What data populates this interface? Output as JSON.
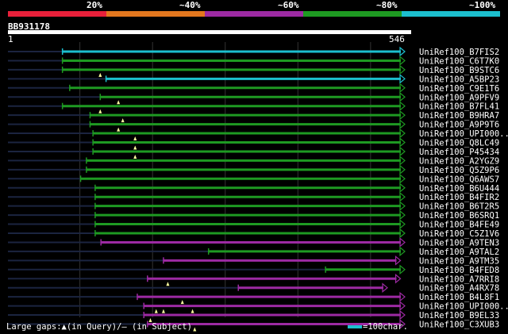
{
  "identity_legend": [
    {
      "label": "20%",
      "color": "#e8203a"
    },
    {
      "label": "~40%",
      "color": "#e3771e"
    },
    {
      "label": "~60%",
      "color": "#9d2aa3"
    },
    {
      "label": "~80%",
      "color": "#1e9a22"
    },
    {
      "label": "~100%",
      "color": "#1cbfce"
    }
  ],
  "query": {
    "id": "BB931178",
    "start_label": "1",
    "end_label": "546",
    "length": 546
  },
  "hits": [
    {
      "name": "UniRef100_B7FIS2",
      "color": "#1cbfce",
      "start": 76,
      "end": 546,
      "arrow": true,
      "gaps": []
    },
    {
      "name": "UniRef100_C6T7K0",
      "color": "#1e9a22",
      "start": 76,
      "end": 546,
      "arrow": true,
      "gaps": []
    },
    {
      "name": "UniRef100_B9STC6",
      "color": "#1e9a22",
      "start": 76,
      "end": 546,
      "arrow": true,
      "gaps": [
        128
      ]
    },
    {
      "name": "UniRef100_A5BP23",
      "color": "#1cbfce",
      "start": 136,
      "end": 546,
      "arrow": true,
      "gaps": []
    },
    {
      "name": "UniRef100_C9E1T6",
      "color": "#1e9a22",
      "start": 86,
      "end": 546,
      "arrow": true,
      "gaps": []
    },
    {
      "name": "UniRef100_A9PFV9",
      "color": "#1e9a22",
      "start": 128,
      "end": 546,
      "arrow": true,
      "gaps": [
        153
      ]
    },
    {
      "name": "UniRef100_B7FL41",
      "color": "#1e9a22",
      "start": 76,
      "end": 546,
      "arrow": true,
      "gaps": [
        128
      ]
    },
    {
      "name": "UniRef100_B9HRA7",
      "color": "#1e9a22",
      "start": 114,
      "end": 546,
      "arrow": true,
      "gaps": [
        159
      ]
    },
    {
      "name": "UniRef100_A9P9T6",
      "color": "#1e9a22",
      "start": 114,
      "end": 546,
      "arrow": true,
      "gaps": [
        153
      ]
    },
    {
      "name": "UniRef100_UPI000...",
      "color": "#1e9a22",
      "start": 118,
      "end": 546,
      "arrow": true,
      "gaps": [
        176
      ]
    },
    {
      "name": "UniRef100_Q8LC49",
      "color": "#1e9a22",
      "start": 118,
      "end": 546,
      "arrow": true,
      "gaps": [
        176
      ]
    },
    {
      "name": "UniRef100_P45434",
      "color": "#1e9a22",
      "start": 118,
      "end": 546,
      "arrow": true,
      "gaps": [
        176
      ]
    },
    {
      "name": "UniRef100_A2YGZ9",
      "color": "#1e9a22",
      "start": 109,
      "end": 546,
      "arrow": true,
      "gaps": []
    },
    {
      "name": "UniRef100_Q5Z9P6",
      "color": "#1e9a22",
      "start": 109,
      "end": 546,
      "arrow": true,
      "gaps": []
    },
    {
      "name": "UniRef100_Q6AWS7",
      "color": "#1e9a22",
      "start": 101,
      "end": 546,
      "arrow": true,
      "gaps": []
    },
    {
      "name": "UniRef100_B6U444",
      "color": "#1e9a22",
      "start": 121,
      "end": 546,
      "arrow": true,
      "gaps": []
    },
    {
      "name": "UniRef100_B4FIR2",
      "color": "#1e9a22",
      "start": 121,
      "end": 546,
      "arrow": true,
      "gaps": []
    },
    {
      "name": "UniRef100_B6T2R5",
      "color": "#1e9a22",
      "start": 121,
      "end": 546,
      "arrow": true,
      "gaps": []
    },
    {
      "name": "UniRef100_B6SRQ1",
      "color": "#1e9a22",
      "start": 121,
      "end": 546,
      "arrow": true,
      "gaps": []
    },
    {
      "name": "UniRef100_B4FE49",
      "color": "#1e9a22",
      "start": 121,
      "end": 546,
      "arrow": true,
      "gaps": []
    },
    {
      "name": "UniRef100_C5Z1V6",
      "color": "#1e9a22",
      "start": 121,
      "end": 546,
      "arrow": true,
      "gaps": []
    },
    {
      "name": "UniRef100_A9TEN3",
      "color": "#9d2aa3",
      "start": 129,
      "end": 546,
      "arrow": true,
      "gaps": []
    },
    {
      "name": "UniRef100_A9TAL2",
      "color": "#1e9a22",
      "start": 277,
      "end": 546,
      "arrow": true,
      "gaps": []
    },
    {
      "name": "UniRef100_A9TM35",
      "color": "#9d2aa3",
      "start": 215,
      "end": 540,
      "arrow": true,
      "gaps": []
    },
    {
      "name": "UniRef100_B4FED8",
      "color": "#1e9a22",
      "start": 438,
      "end": 546,
      "arrow": true,
      "gaps": []
    },
    {
      "name": "UniRef100_A7RRI8",
      "color": "#9d2aa3",
      "start": 193,
      "end": 540,
      "arrow": true,
      "gaps": [
        221
      ]
    },
    {
      "name": "UniRef100_A4RX78",
      "color": "#9d2aa3",
      "start": 318,
      "end": 522,
      "arrow": true,
      "gaps": []
    },
    {
      "name": "UniRef100_B4L8F1",
      "color": "#9d2aa3",
      "start": 179,
      "end": 546,
      "arrow": true,
      "gaps": [
        241
      ]
    },
    {
      "name": "UniRef100_UPI000...",
      "color": "#9d2aa3",
      "start": 188,
      "end": 546,
      "arrow": true,
      "gaps": [
        205,
        215,
        255
      ]
    },
    {
      "name": "UniRef100_B9EL33",
      "color": "#9d2aa3",
      "start": 188,
      "end": 546,
      "arrow": true,
      "gaps": [
        197
      ]
    },
    {
      "name": "UniRef100_C3XUB3",
      "color": "#9d2aa3",
      "start": 193,
      "end": 546,
      "arrow": true,
      "gaps": [
        258
      ]
    }
  ],
  "footer": {
    "gaps_text": "Large gaps:▲(in Query)/– (in Subject)",
    "scale_text": "=100char.",
    "scale_value": 100
  }
}
